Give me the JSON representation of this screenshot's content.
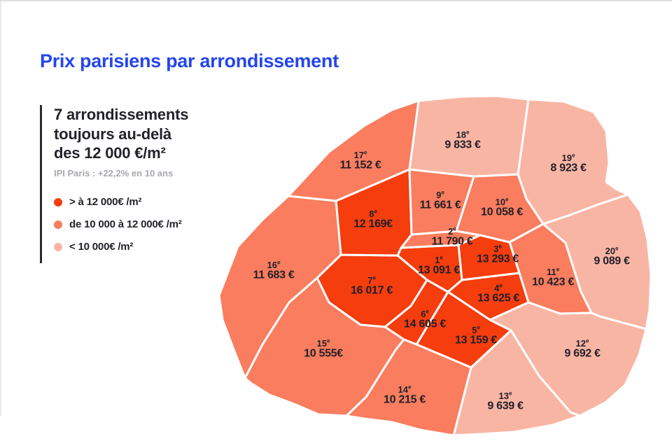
{
  "title": "Prix parisiens par arrondissement",
  "headline": [
    "7 arrondissements",
    "toujours au-delà",
    "des 12 000 €/m²"
  ],
  "note": "IPI Paris : +22,2% en 10 ans",
  "colors": {
    "high": "#f53d0e",
    "mid": "#f97d5e",
    "low": "#f9b5a4"
  },
  "legend": {
    "items": [
      {
        "label": "> à 12 000€ /m²",
        "category": "high"
      },
      {
        "label": "de 10 000 à 12 000€ /m²",
        "category": "mid"
      },
      {
        "label": "< 10 000€ /m²",
        "category": "low"
      }
    ]
  },
  "map": {
    "arrondissements": [
      {
        "num": "1",
        "ordinal": "e",
        "value": "13 091 €",
        "category": "high"
      },
      {
        "num": "2",
        "ordinal": "e",
        "value": "11 790 €",
        "category": "mid"
      },
      {
        "num": "3",
        "ordinal": "e",
        "value": "13 293 €",
        "category": "high"
      },
      {
        "num": "4",
        "ordinal": "e",
        "value": "13 625 €",
        "category": "high"
      },
      {
        "num": "5",
        "ordinal": "e",
        "value": "13 159 €",
        "category": "high"
      },
      {
        "num": "6",
        "ordinal": "e",
        "value": "14 605 €",
        "category": "high"
      },
      {
        "num": "7",
        "ordinal": "e",
        "value": "16 017 €",
        "category": "high"
      },
      {
        "num": "8",
        "ordinal": "e",
        "value": "12 169€",
        "category": "high"
      },
      {
        "num": "9",
        "ordinal": "e",
        "value": "11 661 €",
        "category": "mid"
      },
      {
        "num": "10",
        "ordinal": "e",
        "value": "10 058 €",
        "category": "mid"
      },
      {
        "num": "11",
        "ordinal": "e",
        "value": "10 423 €",
        "category": "mid"
      },
      {
        "num": "12",
        "ordinal": "e",
        "value": "9 692 €",
        "category": "low"
      },
      {
        "num": "13",
        "ordinal": "e",
        "value": "9 639 €",
        "category": "low"
      },
      {
        "num": "14",
        "ordinal": "e",
        "value": "10 215 €",
        "category": "mid"
      },
      {
        "num": "15",
        "ordinal": "e",
        "value": "10 555€",
        "category": "mid"
      },
      {
        "num": "16",
        "ordinal": "e",
        "value": "11 683 €",
        "category": "mid"
      },
      {
        "num": "17",
        "ordinal": "e",
        "value": "11 152 €",
        "category": "mid"
      },
      {
        "num": "18",
        "ordinal": "e",
        "value": "9 833 €",
        "category": "low"
      },
      {
        "num": "19",
        "ordinal": "e",
        "value": "8 923 €",
        "category": "low"
      },
      {
        "num": "20",
        "ordinal": "e",
        "value": "9 089 €",
        "category": "low"
      }
    ]
  }
}
